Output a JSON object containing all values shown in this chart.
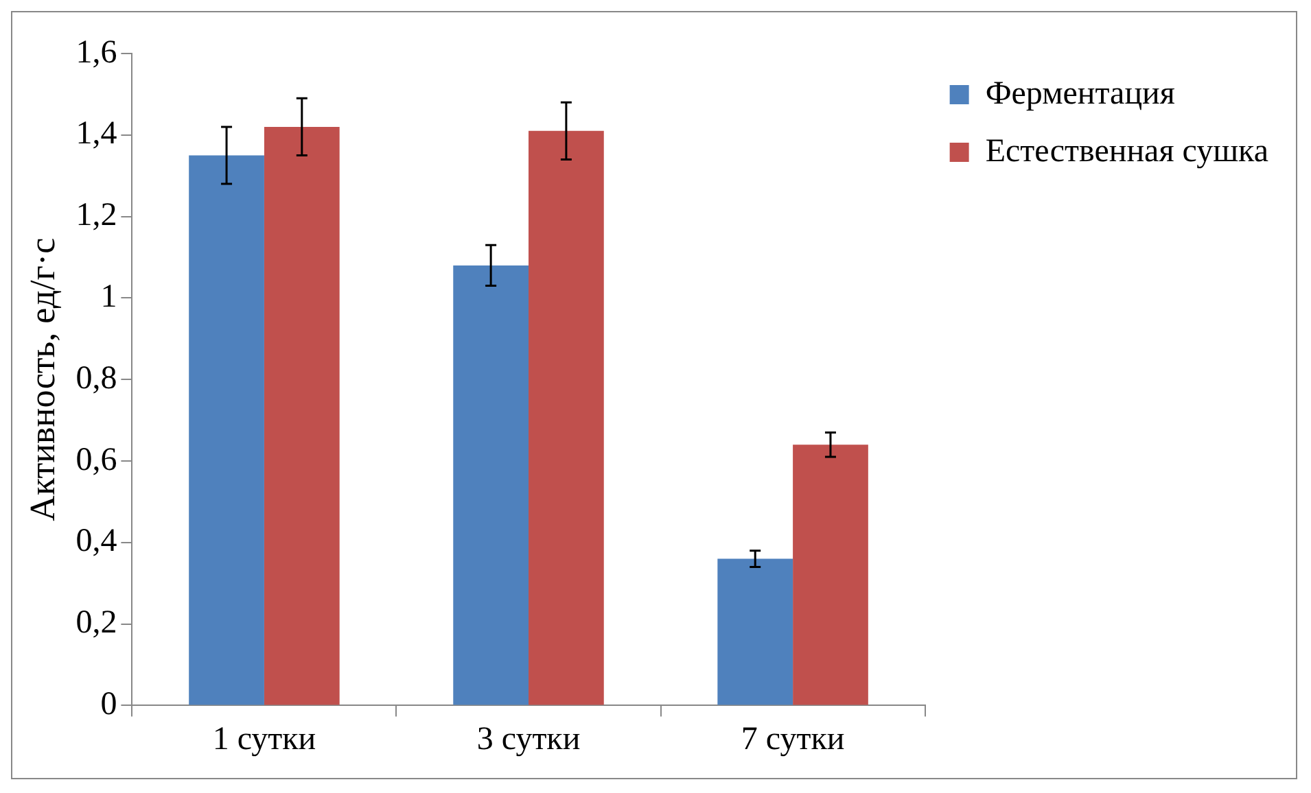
{
  "chart_data": {
    "type": "bar",
    "ylabel": "Активность, ед/г·с",
    "categories": [
      "1 сутки",
      "3 сутки",
      "7 сутки"
    ],
    "series": [
      {
        "name": "Ферментация",
        "color": "#4f81bd",
        "values": [
          1.35,
          1.08,
          0.36
        ],
        "errors": [
          0.07,
          0.05,
          0.02
        ]
      },
      {
        "name": "Естественная сушка",
        "color": "#c0504d",
        "values": [
          1.42,
          1.41,
          0.64
        ],
        "errors": [
          0.07,
          0.07,
          0.03
        ]
      }
    ],
    "ylim": [
      0,
      1.6
    ],
    "yticks": [
      {
        "value": 0,
        "label": "0"
      },
      {
        "value": 0.2,
        "label": "0,2"
      },
      {
        "value": 0.4,
        "label": "0,4"
      },
      {
        "value": 0.6,
        "label": "0,6"
      },
      {
        "value": 0.8,
        "label": "0,8"
      },
      {
        "value": 1,
        "label": "1"
      },
      {
        "value": 1.2,
        "label": "1,2"
      },
      {
        "value": 1.4,
        "label": "1,4"
      },
      {
        "value": 1.6,
        "label": "1,6"
      }
    ],
    "grid": false,
    "legend": "right"
  }
}
